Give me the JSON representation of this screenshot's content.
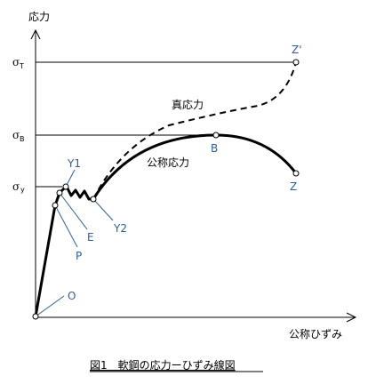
{
  "axes": {
    "y_label": "応力",
    "x_label": "公称ひずみ"
  },
  "stress_levels": {
    "sigma_T": {
      "symbol": "σ",
      "sub": "T"
    },
    "sigma_B": {
      "symbol": "σ",
      "sub": "B"
    },
    "sigma_y": {
      "symbol": "σ",
      "sub": "y"
    }
  },
  "curves": {
    "true_stress": "真応力",
    "nominal_stress": "公称応力"
  },
  "points": {
    "O": "O",
    "P": "P",
    "E": "E",
    "Y1": "Y1",
    "Y2": "Y2",
    "B": "B",
    "Z": "Z",
    "Z_prime": "Z'"
  },
  "caption": "図1　軟鋼の応力ーひずみ線図"
}
